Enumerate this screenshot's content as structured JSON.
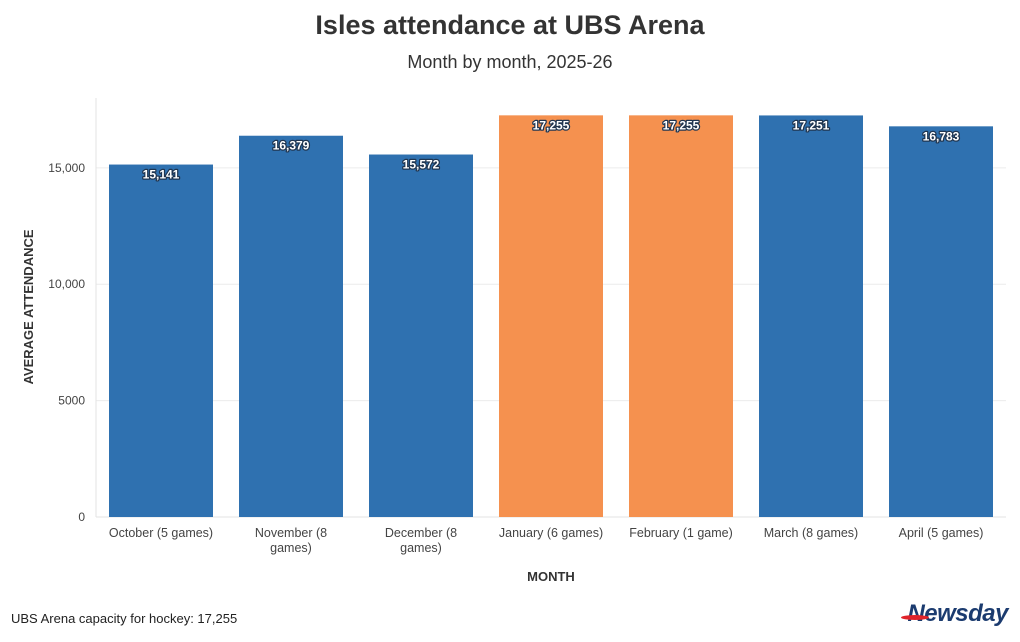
{
  "chart_data": {
    "type": "bar",
    "title": "Isles attendance at UBS Arena",
    "subtitle": "Month by month, 2025-26",
    "xlabel": "MONTH",
    "ylabel": "AVERAGE ATTENDANCE",
    "ylim": [
      0,
      18000
    ],
    "yticks": [
      {
        "value": 0,
        "label": "0"
      },
      {
        "value": 5000,
        "label": "5000"
      },
      {
        "value": 10000,
        "label": "10,000"
      },
      {
        "value": 15000,
        "label": "15,000"
      }
    ],
    "categories": [
      [
        "October (5 games)"
      ],
      [
        "November (8",
        "games)"
      ],
      [
        "December (8",
        "games)"
      ],
      [
        "January (6 games)"
      ],
      [
        "February (1 game)"
      ],
      [
        "March (8 games)"
      ],
      [
        "April (5 games)"
      ]
    ],
    "values": [
      15141,
      16379,
      15572,
      17255,
      17255,
      17251,
      16783
    ],
    "value_labels": [
      "15,141",
      "16,379",
      "15,572",
      "17,255",
      "17,255",
      "17,251",
      "16,783"
    ],
    "highlight": [
      false,
      false,
      false,
      true,
      true,
      false,
      false
    ],
    "colors": {
      "default": "#2f71b0",
      "highlight": "#f5914f",
      "grid": "#ececec"
    },
    "grid": true,
    "legend": "none"
  },
  "footer": {
    "note": "UBS Arena capacity for hockey: 17,255",
    "source_logo": "Newsday"
  }
}
